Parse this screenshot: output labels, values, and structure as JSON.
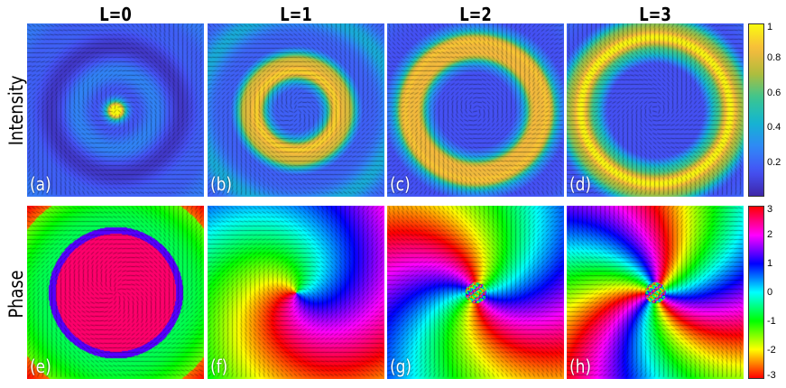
{
  "chart_data": {
    "type": "heatmap",
    "columns": [
      "L=0",
      "L=1",
      "L=2",
      "L=3"
    ],
    "rows": [
      "Intensity",
      "Phase"
    ],
    "panels": [
      {
        "label": "(a)",
        "row": "Intensity",
        "L": 0
      },
      {
        "label": "(b)",
        "row": "Intensity",
        "L": 1
      },
      {
        "label": "(c)",
        "row": "Intensity",
        "L": 2
      },
      {
        "label": "(d)",
        "row": "Intensity",
        "L": 3
      },
      {
        "label": "(e)",
        "row": "Phase",
        "L": 0
      },
      {
        "label": "(f)",
        "row": "Phase",
        "L": 1
      },
      {
        "label": "(g)",
        "row": "Phase",
        "L": 2
      },
      {
        "label": "(h)",
        "row": "Phase",
        "L": 3
      }
    ],
    "colorbars": [
      {
        "for": "Intensity",
        "range": [
          0,
          1
        ],
        "ticks": [
          "1",
          "0.8",
          "0.6",
          "0.4",
          "0.2"
        ],
        "tick_values": [
          1,
          0.8,
          0.6,
          0.4,
          0.2
        ]
      },
      {
        "for": "Phase",
        "range": [
          -3,
          3
        ],
        "ticks": [
          "3",
          "2",
          "1",
          "0",
          "-1",
          "-2",
          "-3"
        ],
        "tick_values": [
          3,
          2,
          1,
          0,
          -1,
          -2,
          -3
        ]
      }
    ]
  },
  "colors": {
    "intensity_map": [
      "#3e26a8",
      "#4552f6",
      "#2f88f6",
      "#14b5d1",
      "#3ac690",
      "#b1bd3c",
      "#f8ba3d",
      "#f9fb0e"
    ],
    "label_text": "#ffffff"
  }
}
